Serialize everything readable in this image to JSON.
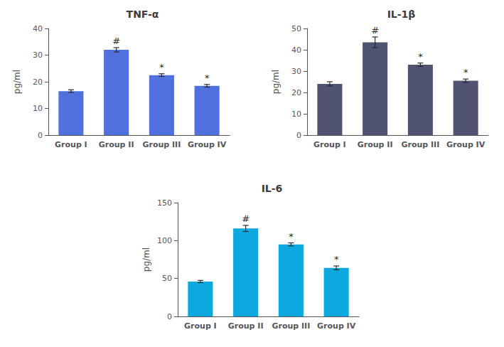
{
  "chart_data": [
    {
      "type": "bar",
      "title": "TNF-α",
      "ylabel": "pg/ml",
      "categories": [
        "Group I",
        "Group II",
        "Group III",
        "Group IV"
      ],
      "values": [
        16.5,
        32.0,
        22.5,
        18.5
      ],
      "errors": [
        0.5,
        0.8,
        0.5,
        0.5
      ],
      "annotations": [
        null,
        "#",
        "*",
        "*"
      ],
      "ylim": [
        0,
        40
      ],
      "yticks": [
        0,
        10,
        20,
        30,
        40
      ],
      "grid": false
    },
    {
      "type": "bar",
      "title": "IL-1β",
      "ylabel": "pg/ml",
      "categories": [
        "Group I",
        "Group II",
        "Group III",
        "Group IV"
      ],
      "values": [
        24.0,
        43.5,
        33.0,
        25.5
      ],
      "errors": [
        1.0,
        2.5,
        0.8,
        0.8
      ],
      "annotations": [
        null,
        "#",
        "*",
        "*"
      ],
      "ylim": [
        0,
        50
      ],
      "yticks": [
        0,
        10,
        20,
        30,
        40,
        50
      ],
      "grid": false
    },
    {
      "type": "bar",
      "title": "IL-6",
      "ylabel": "pg/ml",
      "categories": [
        "Group I",
        "Group II",
        "Group III",
        "Group IV"
      ],
      "values": [
        46.0,
        116.0,
        95.0,
        64.0
      ],
      "errors": [
        1.5,
        4.0,
        2.0,
        2.5
      ],
      "annotations": [
        null,
        "#",
        "*",
        "*"
      ],
      "ylim": [
        0,
        150
      ],
      "yticks": [
        0,
        50,
        100,
        150
      ],
      "grid": false
    }
  ]
}
